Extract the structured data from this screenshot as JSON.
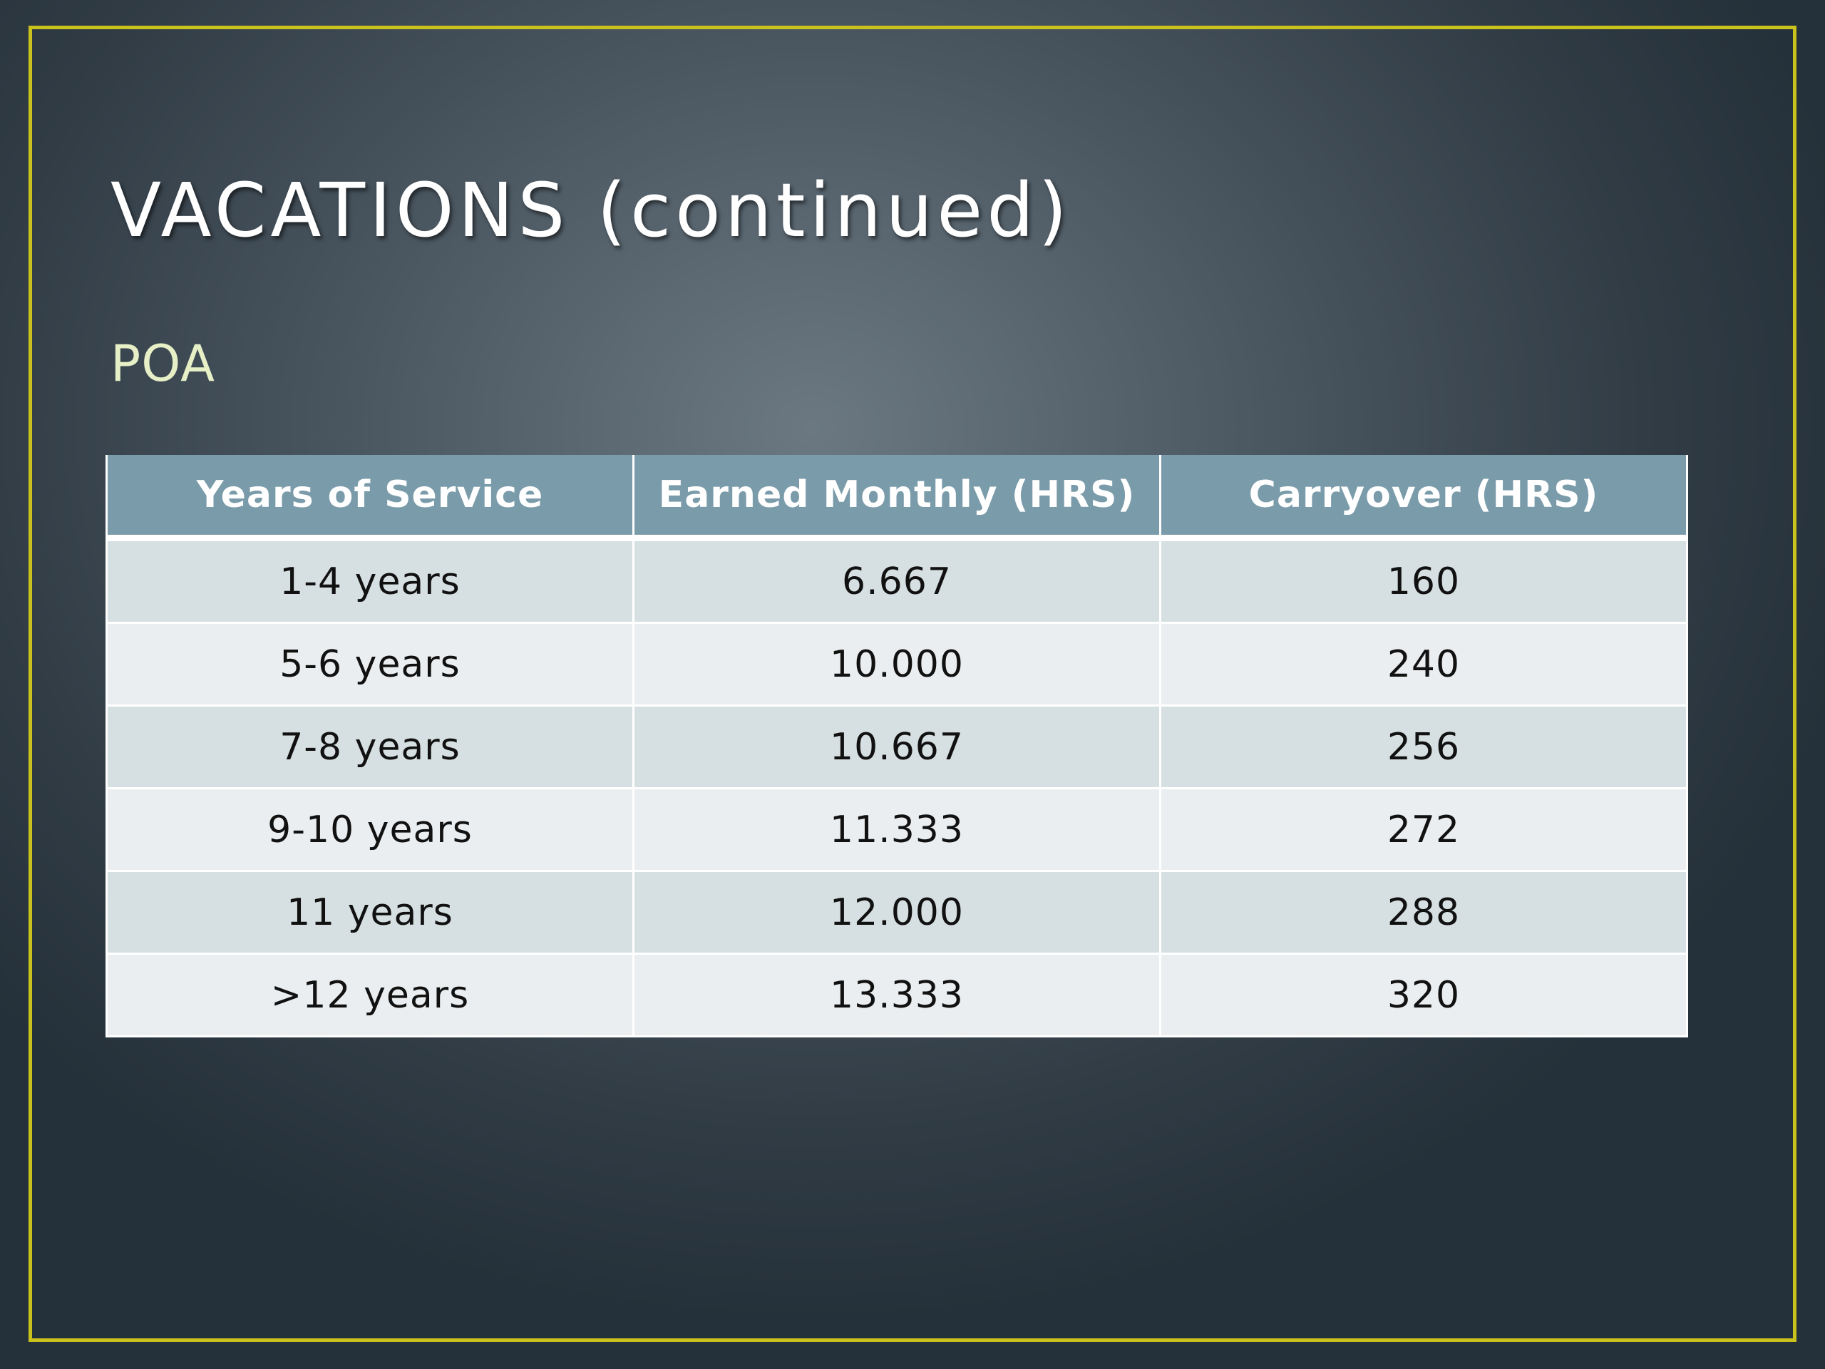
{
  "slide": {
    "title": "VACATIONS (continued)",
    "subtitle": "POA",
    "colors": {
      "frame": "#c9c21c",
      "header_fill": "#7a9ba9",
      "row_odd": "#d6dfe1",
      "row_even": "#ebeef0",
      "subtitle_text": "#e6efc6"
    }
  },
  "table": {
    "headers": [
      "Years of Service",
      "Earned Monthly (HRS)",
      "Carryover (HRS)"
    ],
    "rows": [
      [
        "1-4 years",
        "6.667",
        "160"
      ],
      [
        "5-6 years",
        "10.000",
        "240"
      ],
      [
        "7-8 years",
        "10.667",
        "256"
      ],
      [
        "9-10 years",
        "11.333",
        "272"
      ],
      [
        "11 years",
        "12.000",
        "288"
      ],
      [
        ">12 years",
        "13.333",
        "320"
      ]
    ]
  }
}
